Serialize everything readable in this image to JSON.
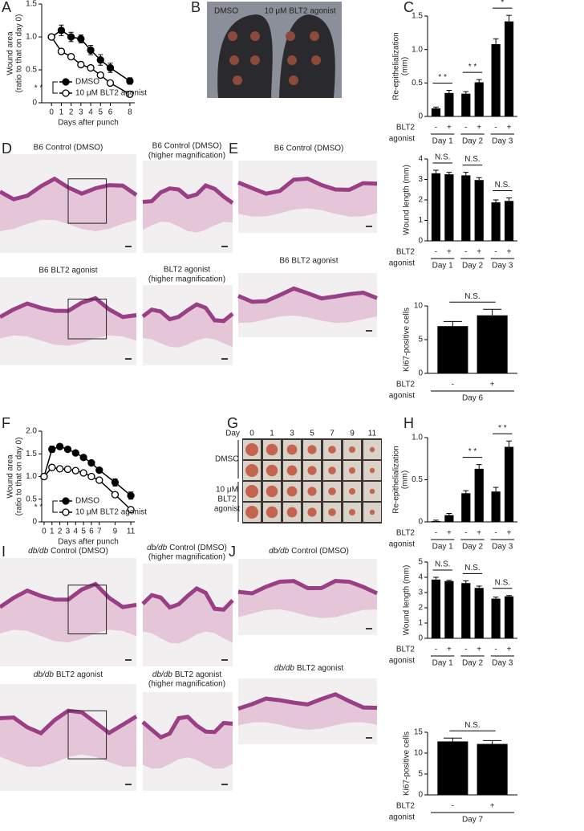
{
  "panel_letters": [
    "A",
    "B",
    "C",
    "D",
    "E",
    "F",
    "G",
    "H",
    "I",
    "J"
  ],
  "panel_b": {
    "labels": [
      "DMSO",
      "10 μM BLT2 agonist"
    ]
  },
  "panel_d": {
    "labels": [
      [
        "B6 Control (DMSO)"
      ],
      [
        "B6 Control (DMSO)",
        "(higher magnification)"
      ],
      [
        "B6 BLT2 agonist"
      ],
      [
        "BLT2 agonist",
        "(higher magnification)"
      ]
    ]
  },
  "panel_e": {
    "labels": [
      "B6 Control (DMSO)",
      "B6 BLT2 agonist"
    ]
  },
  "panel_g": {
    "day_label": "Day",
    "days": [
      0,
      1,
      3,
      5,
      7,
      9,
      11
    ],
    "rows": [
      [
        "DMSO"
      ],
      [
        "10 μM",
        "BLT2",
        "agonist"
      ]
    ]
  },
  "panel_i": {
    "labels": [
      {
        "italic": "db/db",
        "text": "Control (DMSO)"
      },
      {
        "italic": "db/db",
        "text": "Control (DMSO)",
        "line2": "(higher magnification)"
      },
      {
        "italic": "db/db",
        "text": "BLT2 agonist"
      },
      {
        "italic": "db/db",
        "text": "BLT2 agonist",
        "line2": "(higher magnification)"
      }
    ]
  },
  "panel_j": {
    "labels": [
      {
        "italic": "db/db",
        "text": "Control (DMSO)"
      },
      {
        "italic": "db/db",
        "text": "BLT2 agonist"
      }
    ]
  },
  "chart_data": [
    {
      "type": "line",
      "ylabel": [
        "Wound area",
        "(ratio to that on day 0)"
      ],
      "xlabel": "Days after punch",
      "x": [
        0,
        1,
        2,
        3,
        4,
        5,
        6,
        8
      ],
      "xlim": [
        -1,
        8.5
      ],
      "xticks": [
        0,
        1,
        2,
        3,
        4,
        5,
        6,
        8
      ],
      "ylim": [
        0,
        1.5
      ],
      "yticks": [
        0,
        0.5,
        {
          "value": 1,
          "label": "1.0"
        },
        1.5
      ],
      "legend": "lower left",
      "annotation": "* *",
      "series": [
        {
          "name": "DMSO",
          "color": "#000000",
          "marker": "filled",
          "values": [
            1.0,
            1.1,
            1.0,
            0.97,
            0.8,
            0.65,
            0.53,
            0.33
          ],
          "errors": [
            0,
            0.08,
            0.07,
            0.06,
            0.07,
            0.08,
            0.07,
            0.05
          ]
        },
        {
          "name": "10 μM BLT2 agonist",
          "color": "#000000",
          "marker": "open",
          "values": [
            1.0,
            0.78,
            0.7,
            0.58,
            0.53,
            0.42,
            0.3,
            0.13
          ],
          "errors": [
            0,
            0.04,
            0.04,
            0.04,
            0.03,
            0.03,
            0.03,
            0.02
          ]
        }
      ]
    },
    {
      "type": "bar",
      "ylabel": [
        "Re-epithelialization",
        "(mm)"
      ],
      "categories": [
        "-",
        "+",
        "-",
        "+",
        "-",
        "+"
      ],
      "groups": [
        "Day 1",
        "Day 2",
        "Day 3"
      ],
      "group_label": [
        "BLT2",
        "agonist"
      ],
      "color": "#000000",
      "values": [
        0.12,
        0.35,
        0.34,
        0.51,
        1.08,
        1.42
      ],
      "errors": [
        0.02,
        0.04,
        0.03,
        0.04,
        0.08,
        0.09
      ],
      "ylim": [
        0,
        1.5
      ],
      "yticks": [
        0,
        0.5,
        {
          "value": 1,
          "label": "1.0"
        },
        1.5
      ],
      "significance": [
        "* *",
        "* *",
        "*"
      ]
    },
    {
      "type": "bar",
      "ylabel": [
        "Wound length (mm)"
      ],
      "categories": [
        "-",
        "+",
        "-",
        "+",
        "-",
        "+"
      ],
      "groups": [
        "Day 1",
        "Day 2",
        "Day 3"
      ],
      "group_label": [
        "BLT2",
        "agonist"
      ],
      "color": "#000000",
      "values": [
        3.3,
        3.25,
        3.2,
        2.97,
        1.88,
        1.95
      ],
      "errors": [
        0.15,
        0.1,
        0.15,
        0.12,
        0.12,
        0.15
      ],
      "ylim": [
        0,
        4
      ],
      "yticks": [
        0,
        1,
        2,
        3,
        4
      ],
      "significance": [
        "N.S.",
        "N.S.",
        "N.S."
      ]
    },
    {
      "type": "bar",
      "ylabel": [
        "Ki67-positive cells"
      ],
      "categories": [
        "-",
        "+"
      ],
      "groups": [
        "Day 6"
      ],
      "group_label": [
        "BLT2",
        "agonist"
      ],
      "color": "#000000",
      "values": [
        7.0,
        8.6
      ],
      "errors": [
        0.7,
        0.9
      ],
      "ylim": [
        0,
        10
      ],
      "yticks": [
        0,
        5,
        10
      ],
      "significance": [
        "N.S."
      ]
    },
    {
      "type": "line",
      "ylabel": [
        "Wound area",
        "(ratio to that on day 0)"
      ],
      "xlabel": "Days after punch",
      "x": [
        0,
        1,
        2,
        3,
        4,
        5,
        6,
        7,
        9,
        11
      ],
      "xlim": [
        -0.3,
        11.5
      ],
      "xticks": [
        0,
        1,
        2,
        3,
        4,
        5,
        6,
        7,
        9,
        11
      ],
      "ylim": [
        0,
        2
      ],
      "yticks": [
        0,
        0.5,
        {
          "value": 1,
          "label": "1.0"
        },
        1.5,
        {
          "value": 2,
          "label": "2.0"
        }
      ],
      "legend": "lower left",
      "annotation": "* *",
      "series": [
        {
          "name": "DMSO",
          "color": "#000000",
          "marker": "filled",
          "values": [
            1.0,
            1.6,
            1.66,
            1.6,
            1.52,
            1.42,
            1.3,
            1.14,
            0.87,
            0.58
          ],
          "errors": [
            0,
            0.07,
            0.04,
            0.04,
            0.04,
            0.04,
            0.05,
            0.05,
            0.08,
            0.08
          ]
        },
        {
          "name": "10 μM BLT2 agonist",
          "color": "#000000",
          "marker": "open",
          "values": [
            1.0,
            1.2,
            1.17,
            1.16,
            1.13,
            1.08,
            1.0,
            0.92,
            0.6,
            0.27
          ],
          "errors": [
            0,
            0.04,
            0.03,
            0.03,
            0.03,
            0.03,
            0.03,
            0.03,
            0.04,
            0.04
          ]
        }
      ]
    },
    {
      "type": "bar",
      "ylabel": [
        "Re-epithelialization",
        "(mm)"
      ],
      "categories": [
        "-",
        "+",
        "-",
        "+",
        "-",
        "+"
      ],
      "groups": [
        "Day 1",
        "Day 2",
        "Day 3"
      ],
      "group_label": [
        "BLT2",
        "agonist"
      ],
      "color": "#000000",
      "values": [
        0.01,
        0.08,
        0.34,
        0.63,
        0.36,
        0.89
      ],
      "errors": [
        0.01,
        0.02,
        0.03,
        0.05,
        0.05,
        0.07
      ],
      "ylim": [
        0,
        1
      ],
      "yticks": [
        0,
        0.5,
        {
          "value": 1,
          "label": "1.0"
        }
      ],
      "significance": [
        null,
        "* *",
        "* *"
      ]
    },
    {
      "type": "bar",
      "ylabel": [
        "Wound length (mm)"
      ],
      "categories": [
        "-",
        "+",
        "-",
        "+",
        "-",
        "+"
      ],
      "groups": [
        "Day 1",
        "Day 2",
        "Day 3"
      ],
      "group_label": [
        "BLT2",
        "agonist"
      ],
      "color": "#000000",
      "values": [
        3.85,
        3.75,
        3.62,
        3.3,
        2.6,
        2.75
      ],
      "errors": [
        0.15,
        0.05,
        0.15,
        0.12,
        0.1,
        0.05
      ],
      "ylim": [
        0,
        5
      ],
      "yticks": [
        0,
        1,
        2,
        3,
        4,
        5
      ],
      "significance": [
        "N.S.",
        "N.S.",
        "N.S."
      ]
    },
    {
      "type": "bar",
      "ylabel": [
        "Ki67-positive cells"
      ],
      "categories": [
        "-",
        "+"
      ],
      "groups": [
        "Day 7"
      ],
      "group_label": [
        "BLT2",
        "agonist"
      ],
      "color": "#000000",
      "values": [
        12.8,
        12.2
      ],
      "errors": [
        0.8,
        0.8
      ],
      "ylim": [
        0,
        15
      ],
      "yticks": [
        0,
        5,
        10,
        15
      ],
      "significance": [
        "N.S."
      ]
    }
  ]
}
